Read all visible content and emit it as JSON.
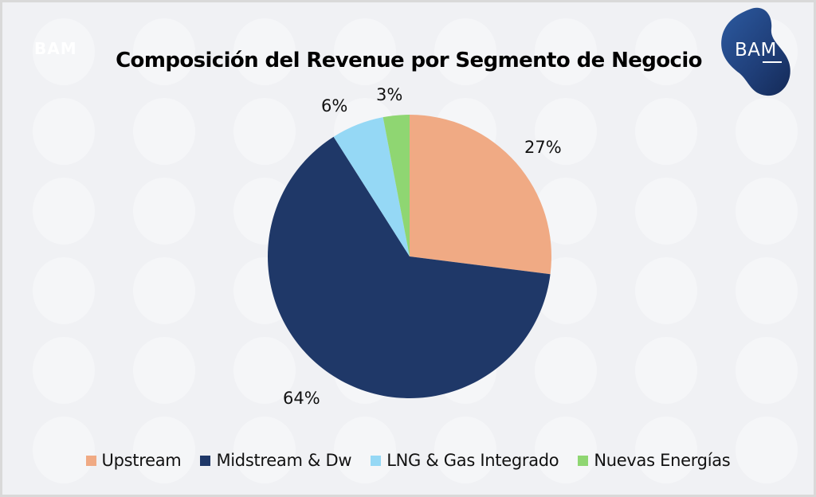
{
  "brand": {
    "logo_text": "BAM",
    "logo_color": "#1f3e78",
    "watermark_text": "BAM"
  },
  "chart_data": {
    "type": "pie",
    "title": "Composición del Revenue por Segmento de Negocio",
    "start_angle": "12 o'clock",
    "direction": "clockwise",
    "legend_position": "bottom",
    "slices": [
      {
        "label": "Upstream",
        "value": 27,
        "data_label": "27%",
        "color": "#f0aa84"
      },
      {
        "label": "Midstream & Dw",
        "value": 64,
        "data_label": "64%",
        "color": "#1f3868"
      },
      {
        "label": "LNG & Gas Integrado",
        "value": 6,
        "data_label": "6%",
        "color": "#95d8f5"
      },
      {
        "label": "Nuevas Energías",
        "value": 3,
        "data_label": "3%",
        "color": "#8fd672"
      }
    ]
  }
}
